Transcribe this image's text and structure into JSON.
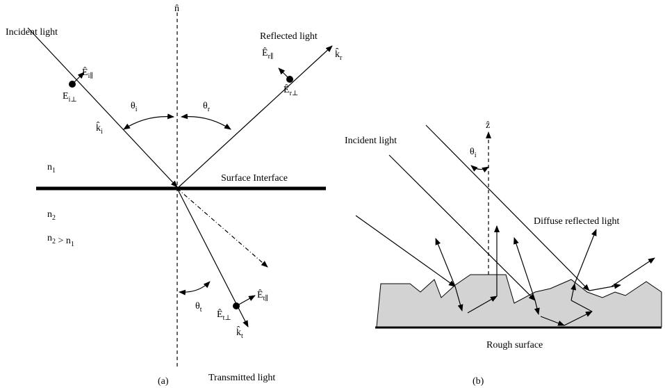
{
  "panel_a": {
    "caption": "(a)",
    "normal": {
      "base": "n̂"
    },
    "incident": "Incident light",
    "reflected": "Reflected light",
    "surface": "Surface Interface",
    "transmitted": "Transmitted light",
    "n1": {
      "base": "n",
      "sub": "1"
    },
    "n2": {
      "base": "n",
      "sub": "2"
    },
    "relation": {
      "base": "n",
      "sub": "2",
      "rest": " > n",
      "rest_sub": "1"
    },
    "theta_i": {
      "base": "θ",
      "sub": "i"
    },
    "theta_r": {
      "base": "θ",
      "sub": "r"
    },
    "theta_t": {
      "base": "θ",
      "sub": "t"
    },
    "k_i": {
      "base": "k̂",
      "sub": "i"
    },
    "k_r": {
      "base": "k̂",
      "sub": "r"
    },
    "k_t": {
      "base": "k̂",
      "sub": "t"
    },
    "E_i_par": {
      "base": "Ê",
      "sub": "i∥"
    },
    "E_r_par": {
      "base": "Ê",
      "sub": "r∥"
    },
    "E_t_par": {
      "base": "Ê",
      "sub": "t∥"
    },
    "E_i_perp": {
      "base": "E",
      "sub": "i⊥"
    },
    "E_r_perp": {
      "base": "Ê",
      "sub": "r⊥"
    },
    "E_t_perp": {
      "base": "Ê",
      "sub": "t⊥"
    }
  },
  "panel_b": {
    "caption": "(b)",
    "z_axis": {
      "base": "ẑ"
    },
    "theta_i": {
      "base": "θ",
      "sub": "i"
    },
    "incident": "Incident light",
    "diffuse": "Diffuse reflected light",
    "rough": "Rough surface"
  }
}
